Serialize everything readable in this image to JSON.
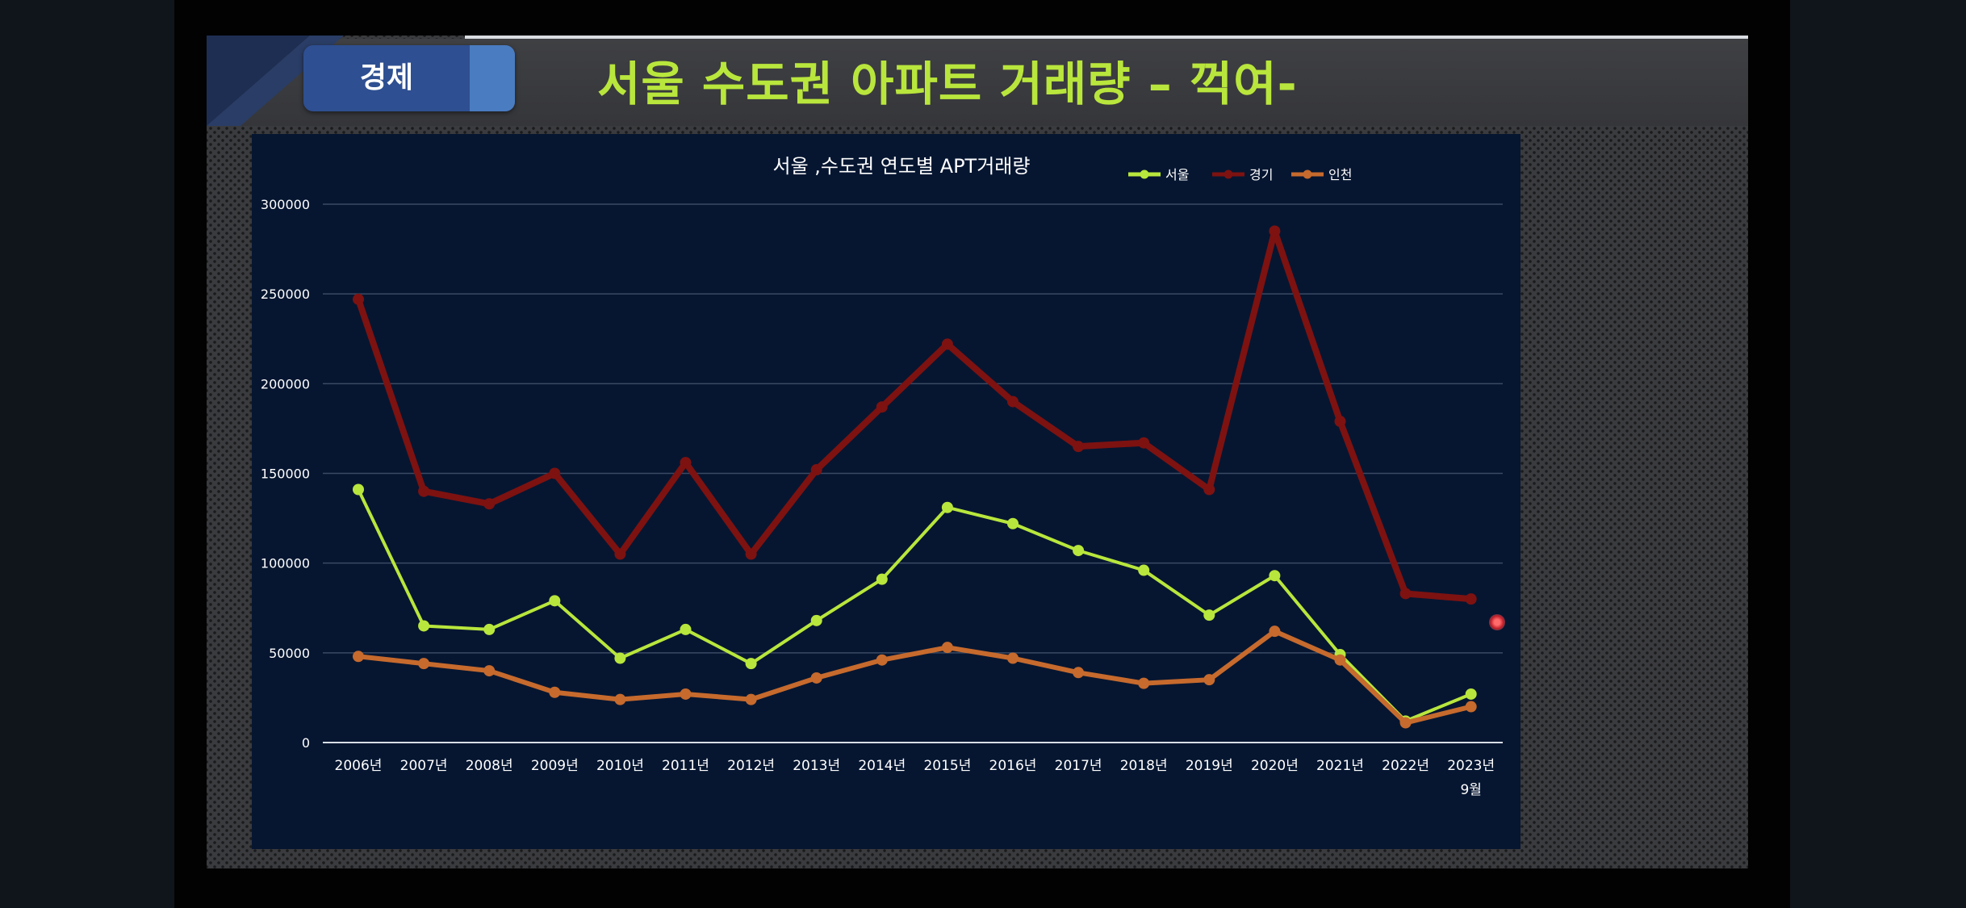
{
  "header": {
    "badge_label": "경제",
    "title": "서울 수도권 아파트  거래량 – 꺽여-"
  },
  "colors": {
    "title_green": "#b9e63c",
    "badge_blue": "#2e4f91",
    "badge_tab": "#4a7cc1",
    "chart_bg": "#061631",
    "grid": "#3a4a63",
    "tick_text": "#ffffff"
  },
  "chart_data": {
    "type": "line",
    "title": "서울 ,수도권 연도별 APT거래량",
    "categories": [
      "2006년",
      "2007년",
      "2008년",
      "2009년",
      "2010년",
      "2011년",
      "2012년",
      "2013년",
      "2014년",
      "2015년",
      "2016년",
      "2017년",
      "2018년",
      "2019년",
      "2020년",
      "2021년",
      "2022년",
      "2023년"
    ],
    "last_category_sublabel": "9월",
    "y_ticks": [
      "0",
      "50000",
      "100000",
      "150000",
      "200000",
      "250000",
      "300000"
    ],
    "ylim": [
      0,
      300000
    ],
    "grid": true,
    "legend_position": "top-right",
    "series": [
      {
        "name": "서울",
        "color": "#b9e63c",
        "stroke_width": 4,
        "values": [
          141000,
          65000,
          63000,
          79000,
          47000,
          63000,
          44000,
          68000,
          91000,
          131000,
          122000,
          107000,
          96000,
          71000,
          93000,
          49000,
          12000,
          27000
        ]
      },
      {
        "name": "경기",
        "color": "#7d1211",
        "stroke_width": 8,
        "values": [
          247000,
          140000,
          133000,
          150000,
          105000,
          156000,
          105000,
          152000,
          187000,
          222000,
          190000,
          165000,
          167000,
          141000,
          285000,
          179000,
          83000,
          80000
        ]
      },
      {
        "name": "인천",
        "color": "#c66a2d",
        "stroke_width": 6,
        "values": [
          48000,
          44000,
          40000,
          28000,
          24000,
          27000,
          24000,
          36000,
          46000,
          53000,
          47000,
          39000,
          33000,
          35000,
          62000,
          46000,
          11000,
          20000
        ]
      }
    ]
  }
}
